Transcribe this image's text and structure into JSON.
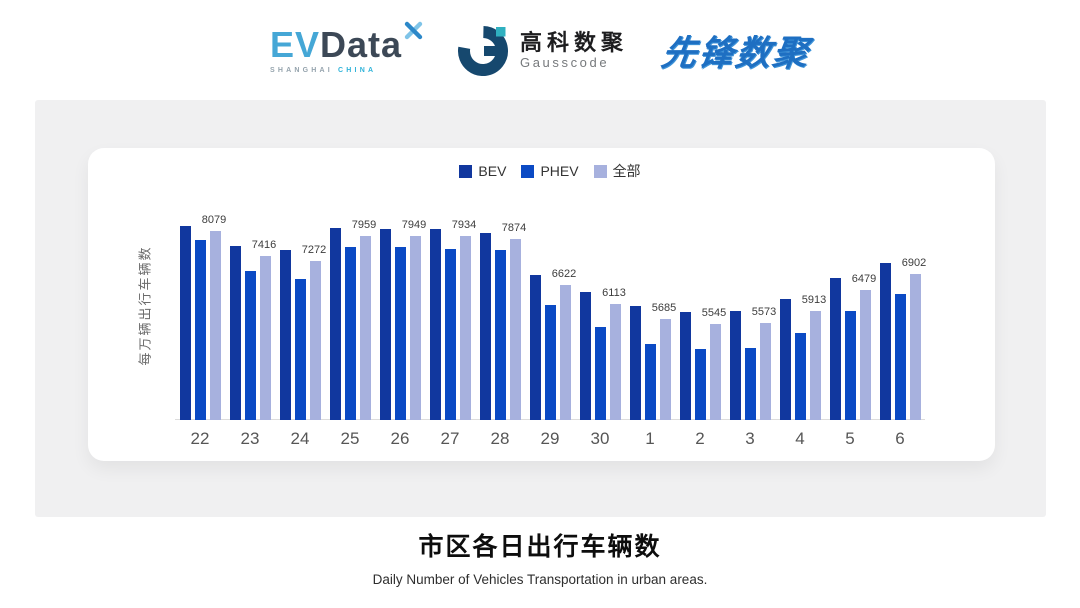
{
  "header": {
    "evdata": {
      "ev": "EV",
      "data": "Data",
      "sub_left": "SHANGHAI",
      "sub_right": "CHINA"
    },
    "gausscode": {
      "cn": "高科数聚",
      "en": "Gausscode"
    },
    "xianfeng": {
      "text": "先锋数聚"
    }
  },
  "chart_data": {
    "type": "bar",
    "title": "市区各日出行车辆数",
    "subtitle": "Daily Number of Vehicles Transportation in urban areas.",
    "ylabel": "每万辆出行车辆数",
    "xlabel": "",
    "categories": [
      "22",
      "23",
      "24",
      "25",
      "26",
      "27",
      "28",
      "29",
      "30",
      "1",
      "2",
      "3",
      "4",
      "5",
      "6"
    ],
    "series": [
      {
        "name": "BEV",
        "color": "#11379e",
        "values": [
          8210,
          7680,
          7560,
          8170,
          8150,
          8140,
          8040,
          6900,
          6420,
          6040,
          5880,
          5920,
          6230,
          6800,
          7220
        ],
        "note": "estimated from bar heights (unlabeled)"
      },
      {
        "name": "PHEV",
        "color": "#0b4ac4",
        "values": [
          7850,
          6990,
          6770,
          7650,
          7640,
          7590,
          7560,
          6060,
          5480,
          5010,
          4890,
          4910,
          5320,
          5915,
          6370
        ],
        "note": "estimated from bar heights (unlabeled)"
      },
      {
        "name": "全部",
        "color": "#a7b1de",
        "values": [
          8079,
          7416,
          7272,
          7959,
          7949,
          7934,
          7874,
          6622,
          6113,
          5685,
          5545,
          5573,
          5913,
          6479,
          6902
        ]
      }
    ],
    "value_labels_series": "全部",
    "ylim": [
      2950,
      8300
    ],
    "grid": false,
    "legend_position": "top"
  },
  "footer": {
    "title": "市区各日出行车辆数",
    "subtitle": "Daily Number of Vehicles Transportation in urban areas."
  }
}
